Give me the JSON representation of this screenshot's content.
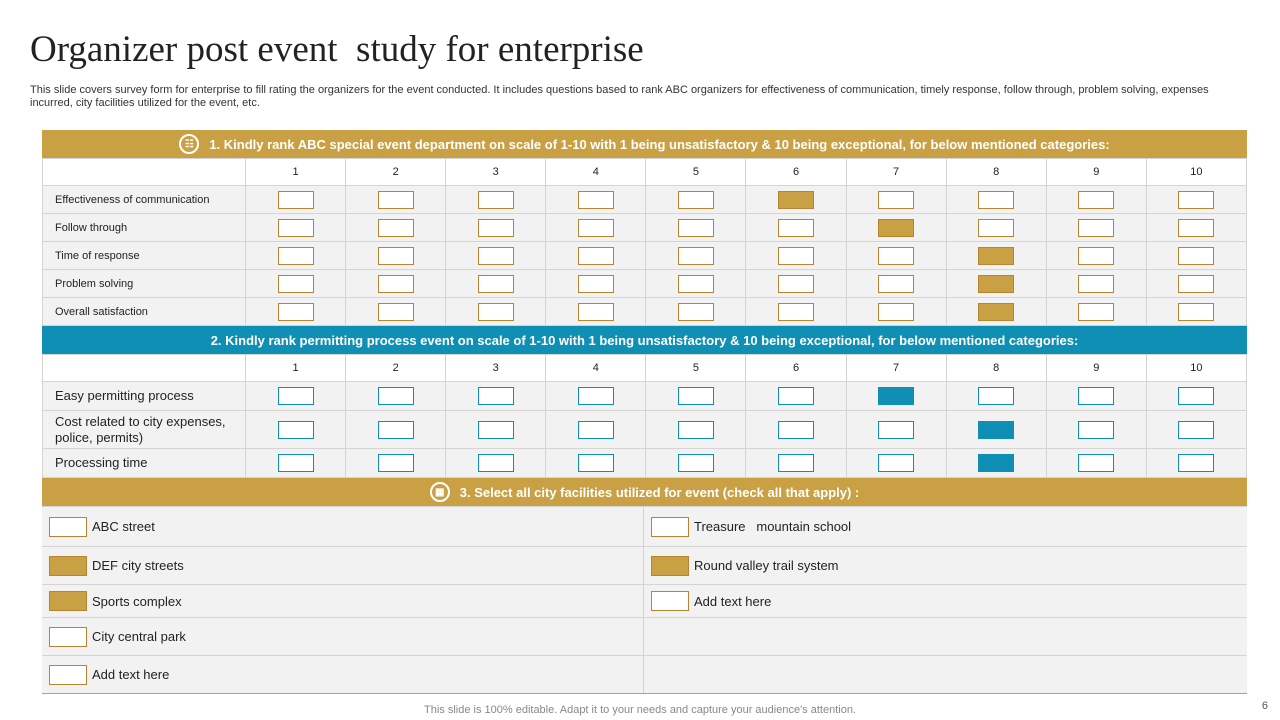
{
  "title": "Organizer post event  study for enterprise",
  "description": "This slide covers survey form for enterprise to fill rating the organizers for the event conducted. It includes questions based to rank ABC organizers for effectiveness of communication, timely response, follow through, problem solving, expenses incurred, city facilities utilized for the event, etc.",
  "scale": [
    "1",
    "2",
    "3",
    "4",
    "5",
    "6",
    "7",
    "8",
    "9",
    "10"
  ],
  "section1": {
    "heading": "1. Kindly rank ABC special event department on scale of 1-10 with 1 being unsatisfactory  & 10 being exceptional, for below mentioned categories:",
    "icon": "org-chart-icon",
    "color": "#c9a043",
    "rows": [
      {
        "label": "Effectiveness of communication",
        "selected": 6
      },
      {
        "label": "Follow through",
        "selected": 7
      },
      {
        "label": "Time  of response",
        "selected": 8
      },
      {
        "label": "Problem  solving",
        "selected": 8
      },
      {
        "label": "Overall satisfaction",
        "selected": 8
      }
    ]
  },
  "section2": {
    "heading": "2. Kindly rank permitting process  event on scale of 1-10 with 1 being unsatisfactory  & 10 being exceptional, for below mentioned categories:",
    "color": "#0e8fb3",
    "rows": [
      {
        "label": "Easy permitting process",
        "selected": 7
      },
      {
        "label": "Cost related to city expenses, police, permits)",
        "selected": 8
      },
      {
        "label": "Processing time",
        "selected": 8
      }
    ]
  },
  "section3": {
    "heading": "3. Select all city facilities utilized for event (check all that apply) :",
    "icon": "facilities-icon",
    "items": [
      {
        "label": "ABC street",
        "checked": false
      },
      {
        "label": "Treasure   mountain school",
        "checked": false
      },
      {
        "label": "DEF city streets",
        "checked": true
      },
      {
        "label": "Round valley trail system",
        "checked": true
      },
      {
        "label": "Sports complex",
        "checked": true
      },
      {
        "label": "Add text here",
        "checked": false
      },
      {
        "label": "City central park",
        "checked": false
      },
      {
        "label": "",
        "checked": null
      },
      {
        "label": "Add text here",
        "checked": false
      },
      {
        "label": "",
        "checked": null
      }
    ]
  },
  "footer": "This slide is 100% editable. Adapt it to your needs and capture your audience's attention.",
  "page_number": "6"
}
